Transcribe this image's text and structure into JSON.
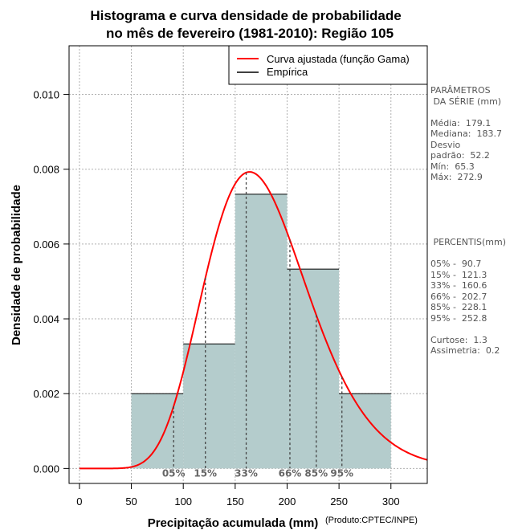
{
  "chart_data": {
    "type": "bar",
    "title_line1": "Histograma e curva densidade de probabilidade",
    "title_line2": "no mês de fevereiro (1981-2010): Região 105",
    "xlabel": "Precipitação acumulada (mm)",
    "ylabel": "Densidade de probabilidade",
    "credit": "(Produto:CPTEC/INPE)",
    "xlim": [
      -10,
      335
    ],
    "ylim": [
      -0.0004,
      0.0113
    ],
    "x_ticks": [
      0,
      50,
      100,
      150,
      200,
      250,
      300
    ],
    "y_ticks": [
      0.0,
      0.002,
      0.004,
      0.006,
      0.008,
      0.01
    ],
    "y_tick_labels": [
      "0.000",
      "0.002",
      "0.004",
      "0.006",
      "0.008",
      "0.010"
    ],
    "grid": true,
    "bins": [
      {
        "from": 50,
        "to": 100,
        "density": 0.002
      },
      {
        "from": 100,
        "to": 150,
        "density": 0.00333
      },
      {
        "from": 150,
        "to": 200,
        "density": 0.00733
      },
      {
        "from": 200,
        "to": 250,
        "density": 0.00533
      },
      {
        "from": 250,
        "to": 300,
        "density": 0.002
      }
    ],
    "bar_color": "#b4cccc",
    "gamma_fit": {
      "mean": 179.1,
      "sd": 52.2,
      "color": "#ff0000"
    },
    "legend": {
      "position": "top-right",
      "entries": [
        {
          "label": "Curva ajustada (função Gama)",
          "color": "#ff0000"
        },
        {
          "label": "Empírica",
          "color": "#000000"
        }
      ]
    },
    "percentile_marks": [
      {
        "label": "05%",
        "value": 90.7
      },
      {
        "label": "15%",
        "value": 121.3
      },
      {
        "label": "33%",
        "value": 160.6
      },
      {
        "label": "66%",
        "value": 202.7
      },
      {
        "label": "85%",
        "value": 228.1
      },
      {
        "label": "95%",
        "value": 252.8
      }
    ]
  },
  "stats_panel": {
    "params_title_1": "PARÂMETROS",
    "params_title_2": " DA SÉRIE (mm)",
    "media": "Média:  179.1",
    "mediana": "Mediana:  183.7",
    "desvio_1": "Desvio",
    "desvio_2": "padrão:  52.2",
    "min": "Mín:  65.3",
    "max": "Máx:  272.9",
    "percentis_title": " PERCENTIS(mm)",
    "p05": "05% -  90.7",
    "p15": "15% -  121.3",
    "p33": "33% -  160.6",
    "p66": "66% -  202.7",
    "p85": "85% -  228.1",
    "p95": "95% -  252.8",
    "curtose": "Curtose:  1.3",
    "assimetria": "Assimetria:  0.2"
  }
}
